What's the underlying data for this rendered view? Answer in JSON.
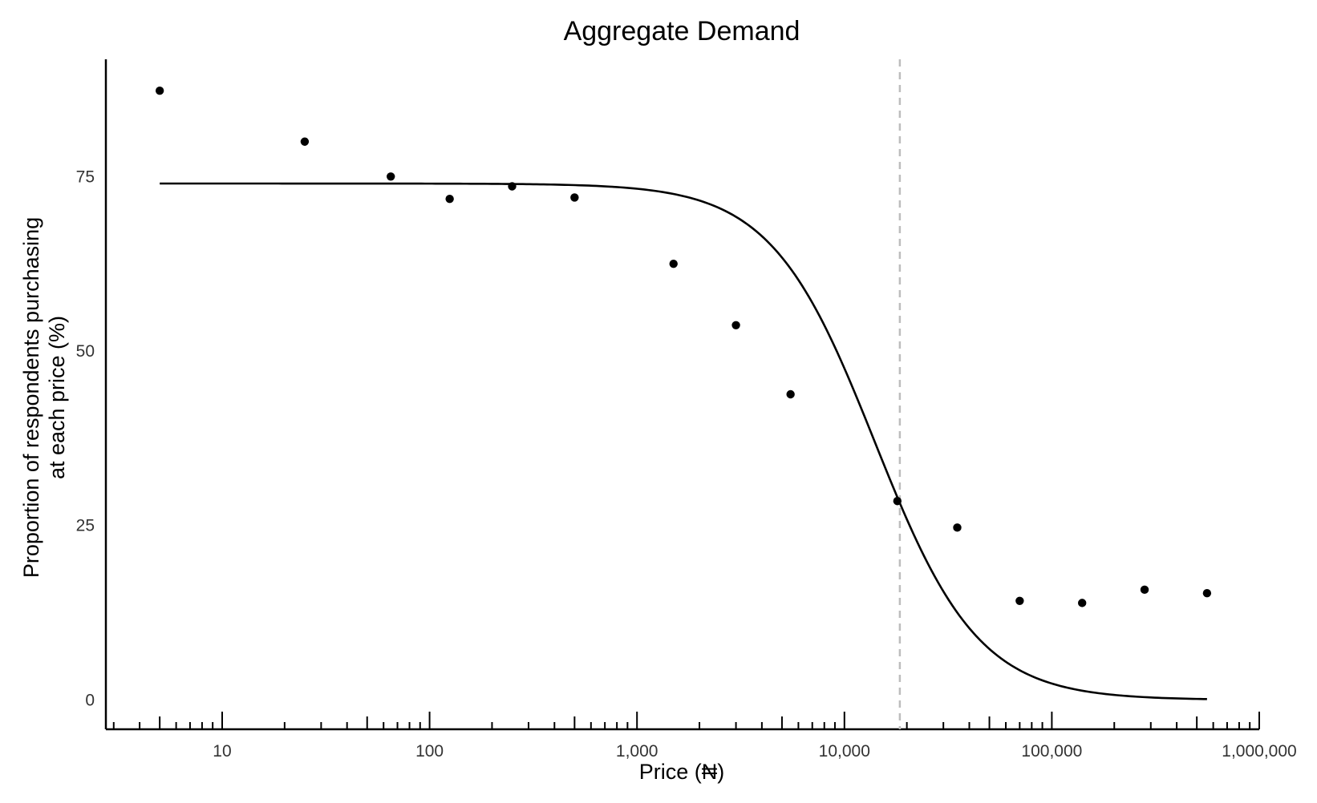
{
  "chart_data": {
    "type": "scatter",
    "title": "Aggregate Demand",
    "xlabel": "Price (₦)",
    "ylabel_lines": [
      "Proportion of respondents purchasing",
      "at each price (%)"
    ],
    "x_scale": "log10",
    "xlim": [
      2.75,
      1000000
    ],
    "ylim": [
      -4.2,
      91.8
    ],
    "x_ticks": [
      {
        "value": 10,
        "label": "10"
      },
      {
        "value": 100,
        "label": "100"
      },
      {
        "value": 1000,
        "label": "1,000"
      },
      {
        "value": 10000,
        "label": "10,000"
      },
      {
        "value": 100000,
        "label": "100,000"
      },
      {
        "value": 1000000,
        "label": "1,000,000"
      }
    ],
    "y_ticks": [
      {
        "value": 0,
        "label": "0"
      },
      {
        "value": 25,
        "label": "25"
      },
      {
        "value": 50,
        "label": "50"
      },
      {
        "value": 75,
        "label": "75"
      }
    ],
    "grid": false,
    "points": {
      "x": [
        5,
        25,
        65,
        125,
        250,
        500,
        1500,
        3000,
        5500,
        18000,
        35000,
        70000,
        140000,
        280000,
        560000
      ],
      "y": [
        87.3,
        80.0,
        75.0,
        71.8,
        73.6,
        72.0,
        62.5,
        53.7,
        43.8,
        28.5,
        24.7,
        14.2,
        13.9,
        15.8,
        15.3
      ]
    },
    "fit_curve": {
      "type": "logistic",
      "top": 74,
      "bottom": 0,
      "midpoint_x": 14000,
      "x_range": [
        5,
        560000
      ],
      "color": "#000000"
    },
    "reference_line": {
      "x": 18500,
      "style": "dashed",
      "color": "#bdbdbd"
    }
  }
}
